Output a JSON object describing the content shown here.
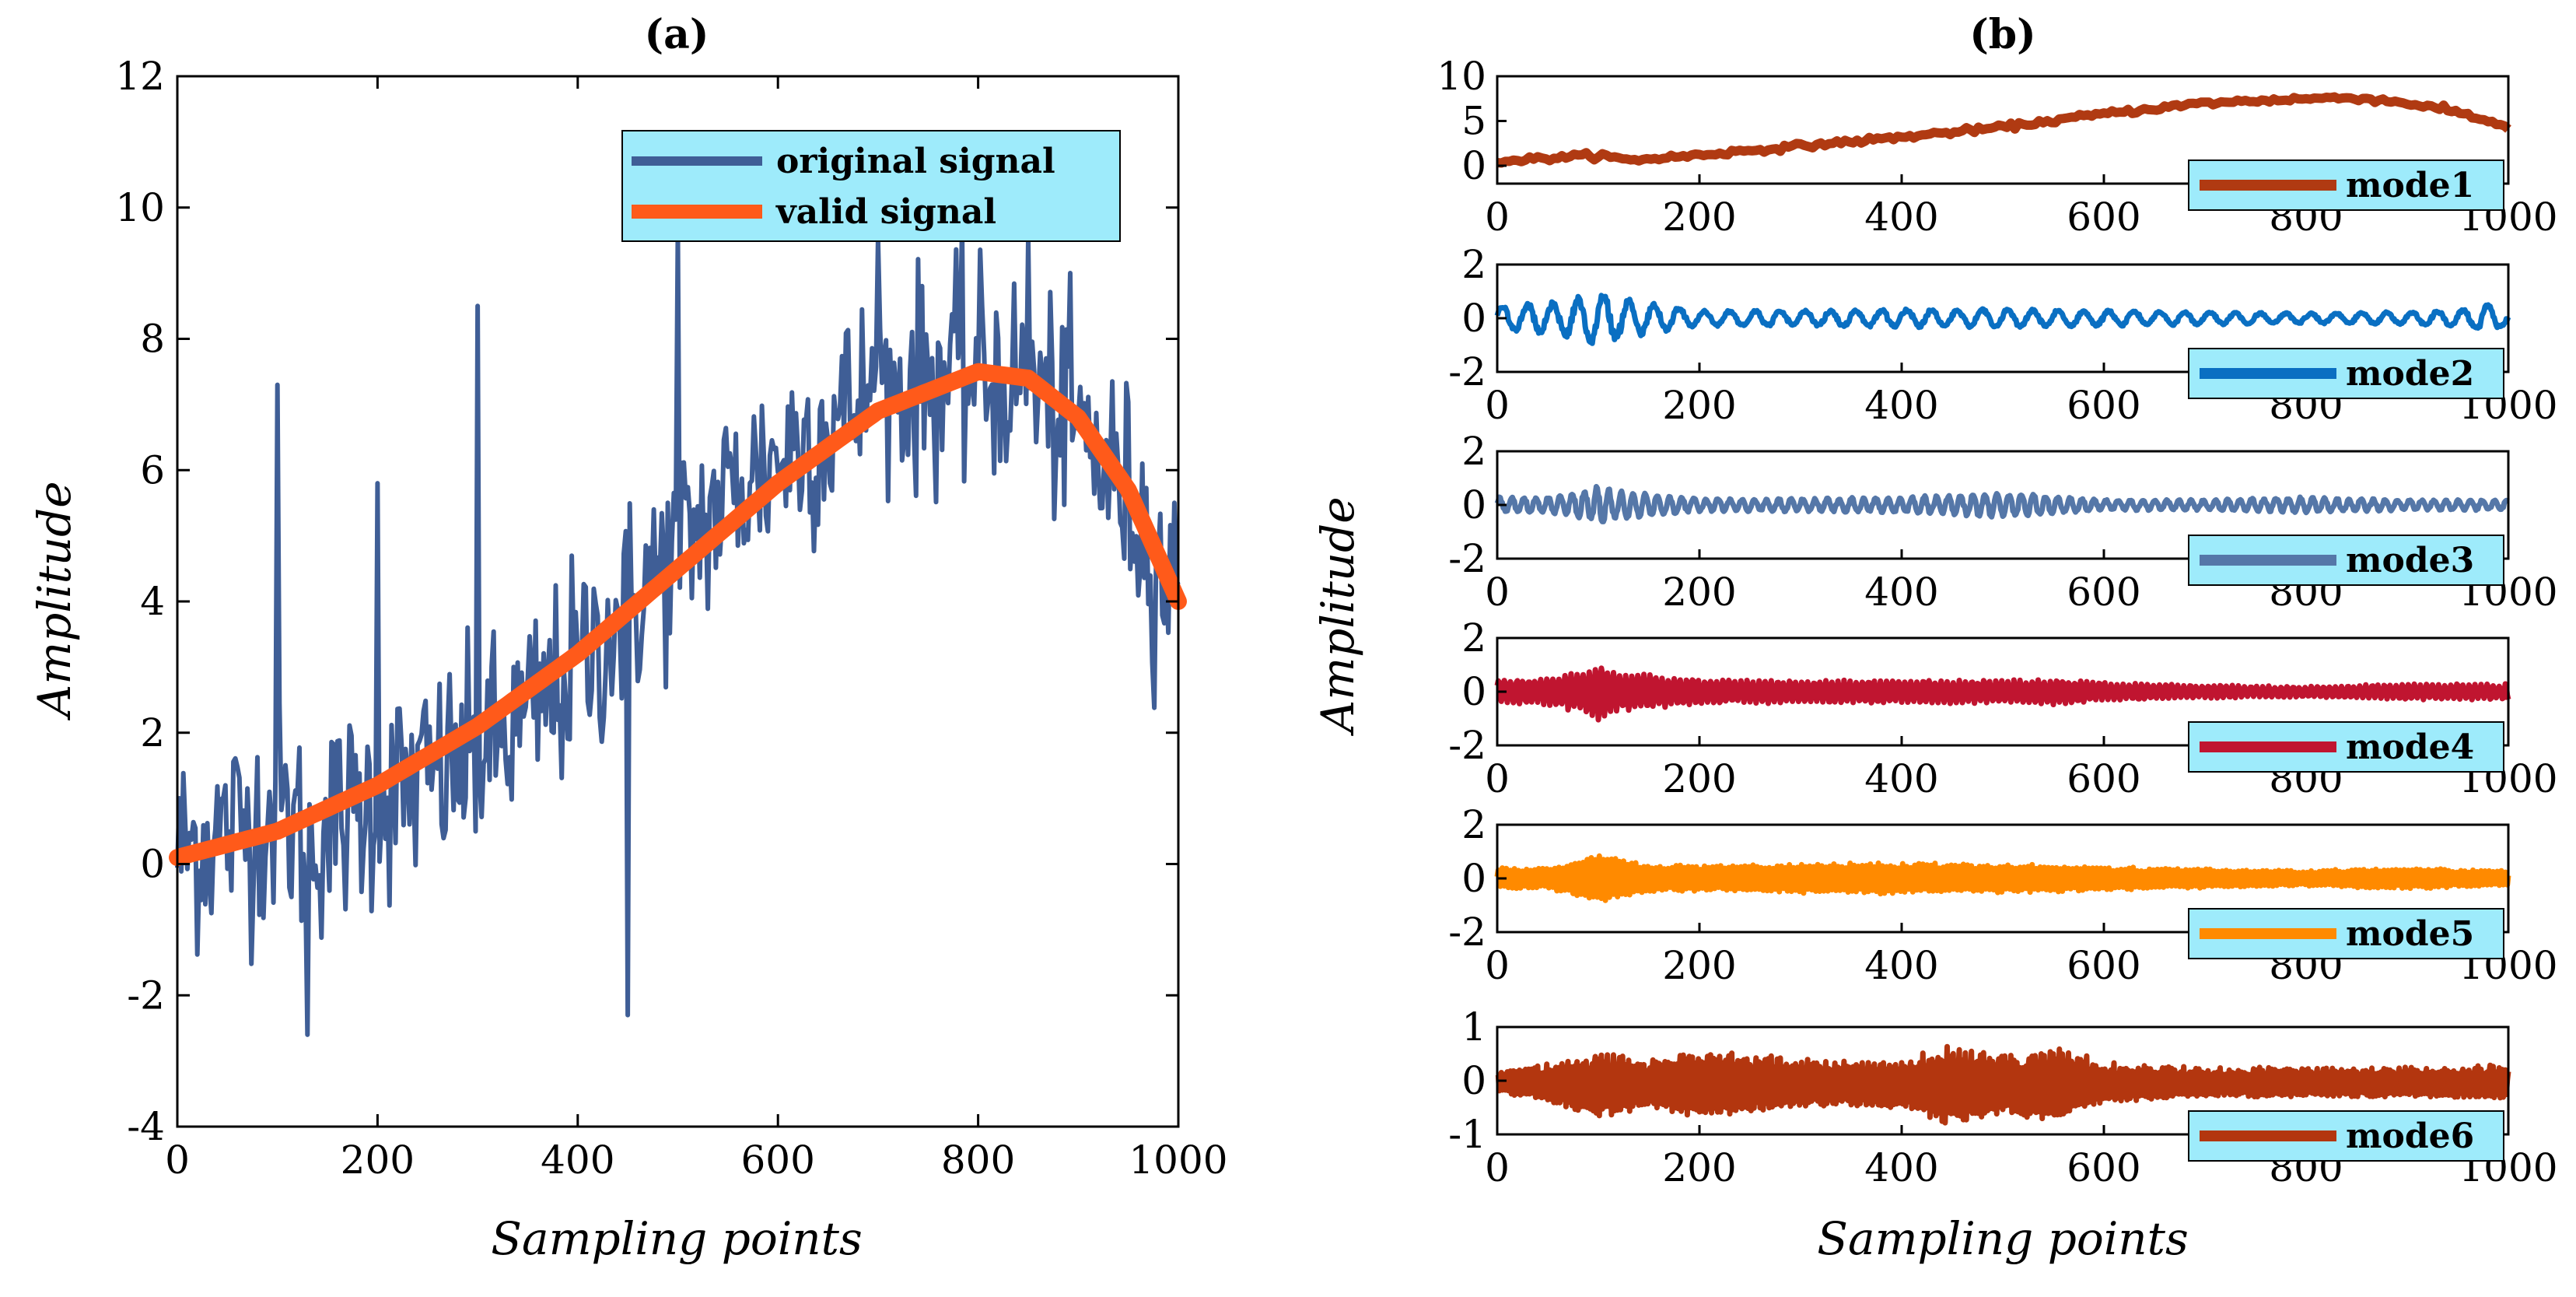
{
  "chart_data": [
    {
      "type": "line",
      "title": "(a)",
      "xlabel": "Sampling points",
      "ylabel": "Amplitude",
      "xlim": [
        0,
        1000
      ],
      "ylim": [
        -4,
        12
      ],
      "xticks": [
        0,
        200,
        400,
        600,
        800,
        1000
      ],
      "yticks": [
        -4,
        -2,
        0,
        2,
        4,
        6,
        8,
        10,
        12
      ],
      "grid": false,
      "legend_position": "top-right",
      "series": [
        {
          "name": "original signal",
          "color": "#3F5E96",
          "description_points": {
            "x": [
              0,
              100,
              130,
              200,
              300,
              350,
              400,
              450,
              500,
              550,
              600,
              700,
              750,
              800,
              850,
              900,
              950,
              1000
            ],
            "y": [
              0.2,
              0.8,
              0.4,
              1.0,
              1.6,
              2.2,
              3.0,
              3.9,
              4.8,
              5.6,
              6.2,
              7.2,
              7.4,
              7.5,
              7.3,
              6.6,
              5.6,
              4.0
            ],
            "spikes": [
              [
                100,
                7.3
              ],
              [
                130,
                -2.6
              ],
              [
                200,
                5.8
              ],
              [
                300,
                8.5
              ],
              [
                450,
                -2.3
              ],
              [
                500,
                9.6
              ],
              [
                700,
                9.5
              ],
              [
                850,
                9.5
              ]
            ],
            "noise_sd": 1.1
          }
        },
        {
          "name": "valid signal",
          "color": "#FF5A1A",
          "x": [
            0,
            100,
            200,
            300,
            400,
            500,
            600,
            700,
            800,
            850,
            900,
            950,
            1000
          ],
          "y": [
            0.1,
            0.5,
            1.2,
            2.1,
            3.2,
            4.5,
            5.8,
            6.9,
            7.5,
            7.4,
            6.8,
            5.7,
            4.0
          ]
        }
      ]
    },
    {
      "type": "line",
      "title": "(b)",
      "xlabel": "Sampling points",
      "ylabel": "Amplitude",
      "grid": false,
      "legend_position": "bottom-right",
      "subplots": [
        {
          "name": "mode1",
          "color": "#B03A12",
          "ylim": [
            -2,
            10
          ],
          "yticks": [
            0,
            5,
            10
          ],
          "xticks": [
            0,
            200,
            400,
            600,
            800,
            1000
          ],
          "x": [
            0,
            100,
            130,
            200,
            300,
            400,
            500,
            600,
            700,
            800,
            850,
            900,
            950,
            1000
          ],
          "y": [
            0.5,
            1.2,
            0.6,
            1.2,
            2.2,
            3.2,
            4.3,
            5.8,
            7.0,
            7.5,
            7.6,
            7.0,
            6.0,
            4.3
          ]
        },
        {
          "name": "mode2",
          "color": "#0A6FC2",
          "ylim": [
            -2,
            2
          ],
          "yticks": [
            -2,
            0,
            2
          ],
          "xticks": [
            0,
            200,
            400,
            600,
            800,
            1000
          ],
          "envelope": {
            "x": [
              0,
              50,
              100,
              150,
              200,
              300,
              400,
              500,
              600,
              700,
              800,
              900,
              950,
              980,
              1000
            ],
            "amp": [
              0.5,
              0.6,
              1.0,
              0.6,
              0.3,
              0.3,
              0.35,
              0.35,
              0.3,
              0.25,
              0.2,
              0.25,
              0.3,
              0.55,
              0.3
            ]
          },
          "period": 25
        },
        {
          "name": "mode3",
          "color": "#5577A8",
          "ylim": [
            -2,
            2
          ],
          "yticks": [
            -2,
            0,
            2
          ],
          "xticks": [
            0,
            200,
            400,
            600,
            800,
            1000
          ],
          "envelope": {
            "x": [
              0,
              50,
              90,
              100,
              110,
              200,
              300,
              400,
              500,
              600,
              700,
              800,
              900,
              1000
            ],
            "amp": [
              0.3,
              0.3,
              0.6,
              0.9,
              0.6,
              0.25,
              0.25,
              0.3,
              0.5,
              0.2,
              0.2,
              0.3,
              0.2,
              0.2
            ]
          },
          "period": 12
        },
        {
          "name": "mode4",
          "color": "#C01530",
          "ylim": [
            -2,
            2
          ],
          "yticks": [
            -2,
            0,
            2
          ],
          "xticks": [
            0,
            200,
            400,
            600,
            800,
            1000
          ],
          "envelope": {
            "x": [
              0,
              50,
              90,
              100,
              110,
              200,
              300,
              400,
              500,
              550,
              600,
              700,
              800,
              900,
              1000
            ],
            "amp": [
              0.5,
              0.5,
              0.9,
              1.1,
              0.8,
              0.45,
              0.45,
              0.45,
              0.45,
              0.5,
              0.35,
              0.25,
              0.2,
              0.3,
              0.3
            ]
          },
          "period": 6
        },
        {
          "name": "mode5",
          "color": "#FF8A00",
          "ylim": [
            -2,
            2
          ],
          "yticks": [
            -2,
            0,
            2
          ],
          "xticks": [
            0,
            200,
            400,
            600,
            800,
            1000
          ],
          "envelope": {
            "x": [
              0,
              50,
              100,
              150,
              200,
              300,
              400,
              450,
              500,
              600,
              700,
              800,
              900,
              1000
            ],
            "amp": [
              0.4,
              0.4,
              0.9,
              0.5,
              0.5,
              0.55,
              0.6,
              0.55,
              0.55,
              0.45,
              0.35,
              0.3,
              0.4,
              0.3
            ]
          },
          "period": 4
        },
        {
          "name": "mode6",
          "color": "#B3360F",
          "ylim": [
            -1,
            1
          ],
          "yticks": [
            -1,
            0,
            1
          ],
          "xticks": [
            0,
            200,
            400,
            600,
            800,
            1000
          ],
          "envelope": {
            "x": [
              0,
              50,
              100,
              150,
              200,
              300,
              400,
              450,
              500,
              550,
              600,
              700,
              800,
              900,
              1000
            ],
            "amp": [
              0.2,
              0.4,
              0.7,
              0.5,
              0.7,
              0.5,
              0.5,
              0.85,
              0.6,
              0.8,
              0.4,
              0.3,
              0.3,
              0.3,
              0.35
            ]
          },
          "period": 3
        }
      ]
    }
  ],
  "legend_bg": "#9EEBFB"
}
